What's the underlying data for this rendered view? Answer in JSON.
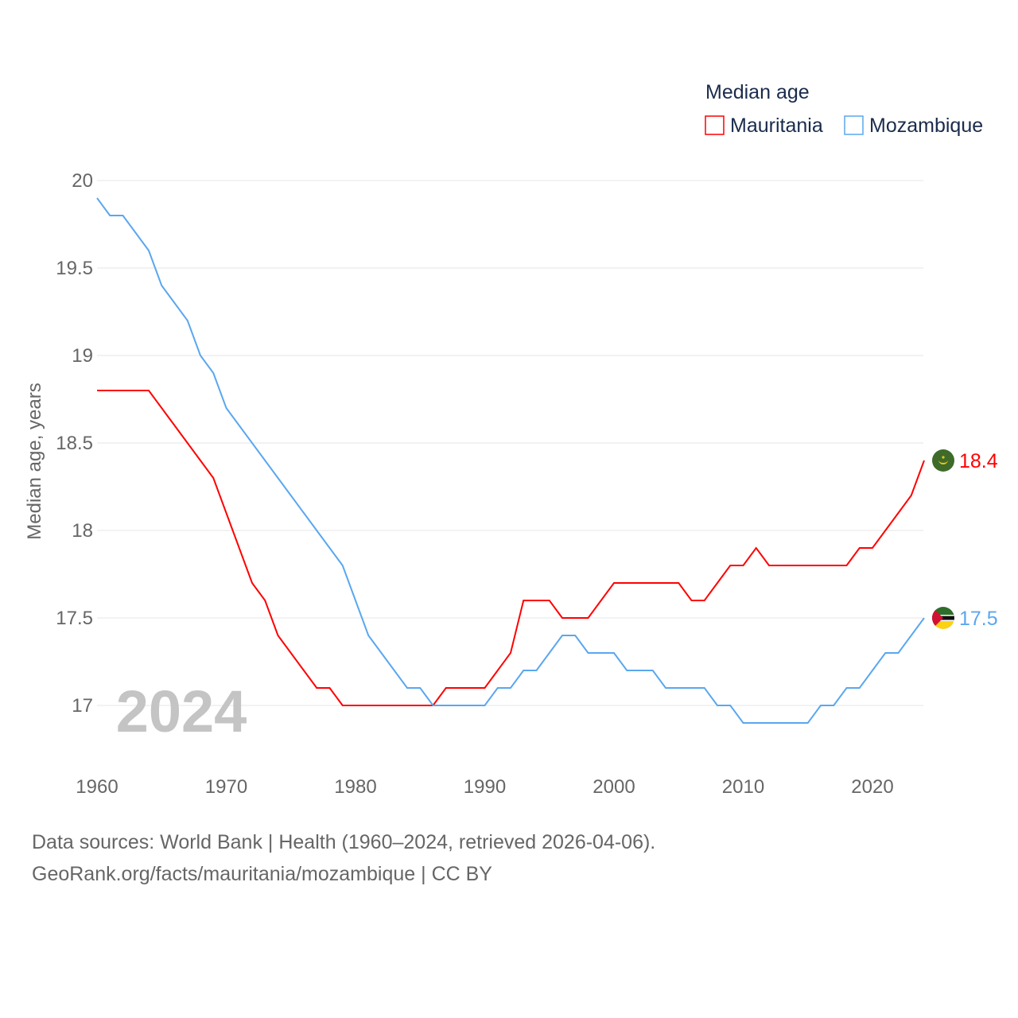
{
  "chart_data": {
    "type": "line",
    "title": "Median age",
    "ylabel": "Median age, years",
    "xlabel": "",
    "xlim": [
      1960,
      2024
    ],
    "ylim": [
      16.65,
      20
    ],
    "grid": true,
    "legend_placement": "top-right",
    "x_ticks": [
      "1960",
      "1970",
      "1980",
      "1990",
      "2000",
      "2010",
      "2020"
    ],
    "y_ticks": [
      "17",
      "17.5",
      "18",
      "18.5",
      "19",
      "19.5",
      "20"
    ],
    "year_watermark": "2024",
    "x": [
      1960,
      1961,
      1962,
      1963,
      1964,
      1965,
      1966,
      1967,
      1968,
      1969,
      1970,
      1971,
      1972,
      1973,
      1974,
      1975,
      1976,
      1977,
      1978,
      1979,
      1980,
      1981,
      1982,
      1983,
      1984,
      1985,
      1986,
      1987,
      1988,
      1989,
      1990,
      1991,
      1992,
      1993,
      1994,
      1995,
      1996,
      1997,
      1998,
      1999,
      2000,
      2001,
      2002,
      2003,
      2004,
      2005,
      2006,
      2007,
      2008,
      2009,
      2010,
      2011,
      2012,
      2013,
      2014,
      2015,
      2016,
      2017,
      2018,
      2019,
      2020,
      2021,
      2022,
      2023,
      2024
    ],
    "series": [
      {
        "name": "Mauritania",
        "color": "#ff0000",
        "end_label": "18.4",
        "values": [
          18.8,
          18.8,
          18.8,
          18.8,
          18.8,
          18.7,
          18.6,
          18.5,
          18.4,
          18.3,
          18.1,
          17.9,
          17.7,
          17.6,
          17.4,
          17.3,
          17.2,
          17.1,
          17.1,
          17.0,
          17.0,
          17.0,
          17.0,
          17.0,
          17.0,
          17.0,
          17.0,
          17.1,
          17.1,
          17.1,
          17.1,
          17.2,
          17.3,
          17.6,
          17.6,
          17.6,
          17.5,
          17.5,
          17.5,
          17.6,
          17.7,
          17.7,
          17.7,
          17.7,
          17.7,
          17.7,
          17.6,
          17.6,
          17.7,
          17.8,
          17.8,
          17.9,
          17.8,
          17.8,
          17.8,
          17.8,
          17.8,
          17.8,
          17.8,
          17.9,
          17.9,
          18.0,
          18.1,
          18.2,
          18.4
        ]
      },
      {
        "name": "Mozambique",
        "color": "#5aa7ef",
        "end_label": "17.5",
        "values": [
          19.9,
          19.8,
          19.8,
          19.7,
          19.6,
          19.4,
          19.3,
          19.2,
          19.0,
          18.9,
          18.7,
          18.6,
          18.5,
          18.4,
          18.3,
          18.2,
          18.1,
          18.0,
          17.9,
          17.8,
          17.6,
          17.4,
          17.3,
          17.2,
          17.1,
          17.1,
          17.0,
          17.0,
          17.0,
          17.0,
          17.0,
          17.1,
          17.1,
          17.2,
          17.2,
          17.3,
          17.4,
          17.4,
          17.3,
          17.3,
          17.3,
          17.2,
          17.2,
          17.2,
          17.1,
          17.1,
          17.1,
          17.1,
          17.0,
          17.0,
          16.9,
          16.9,
          16.9,
          16.9,
          16.9,
          16.9,
          17.0,
          17.0,
          17.1,
          17.1,
          17.2,
          17.3,
          17.3,
          17.4,
          17.5
        ]
      }
    ]
  },
  "footer": {
    "line1": "Data sources: World Bank | Health (1960–2024, retrieved 2026-04-06).",
    "line2": "GeoRank.org/facts/mauritania/mozambique | CC BY"
  }
}
